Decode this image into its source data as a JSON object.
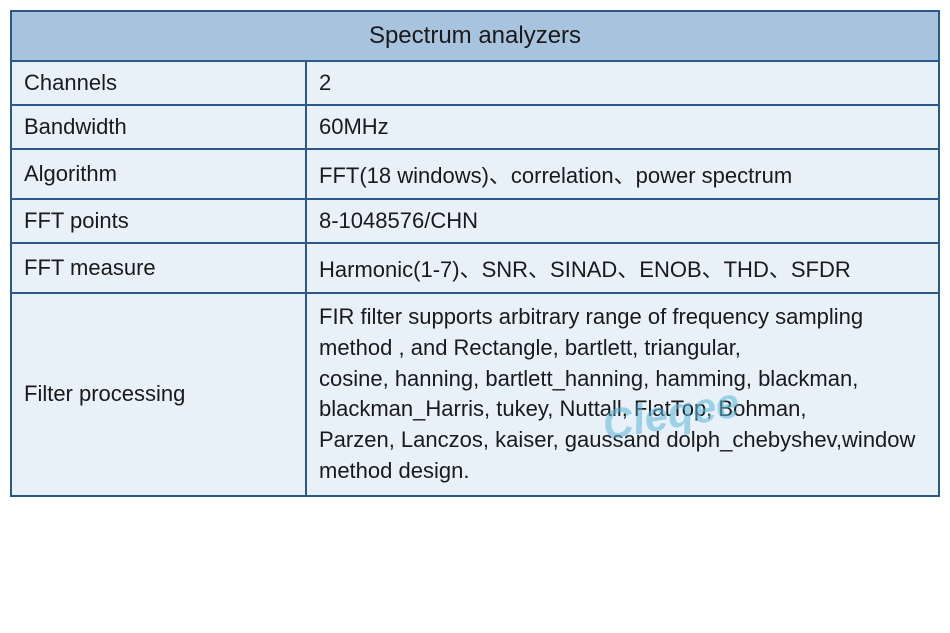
{
  "table": {
    "title": "Spectrum analyzers",
    "header_bg": "#a8c3de",
    "cell_bg": "#e8f0f8",
    "border_color": "#2b5a8a",
    "title_fontsize": 24,
    "cell_fontsize": 22,
    "text_color": "#1a1a1a",
    "label_col_width": 295,
    "rows": [
      {
        "label": "Channels",
        "value": "2"
      },
      {
        "label": "Bandwidth",
        "value": "60MHz"
      },
      {
        "label": "Algorithm",
        "value": "FFT(18 windows)、correlation、power spectrum"
      },
      {
        "label": "FFT points",
        "value": "8-1048576/CHN"
      },
      {
        "label": "FFT measure",
        "value": "Harmonic(1-7)、SNR、SINAD、ENOB、THD、SFDR"
      },
      {
        "label": "Filter processing",
        "value": "FIR filter supports arbitrary range of frequency sampling method , and Rectangle, bartlett, triangular,\ncosine, hanning, bartlett_hanning, hamming, blackman,\nblackman_Harris, tukey, Nuttall, FlatTop, Bohman,\nParzen, Lanczos, kaiser, gaussand dolph_chebyshev,window method design."
      }
    ]
  },
  "watermark": {
    "text": "Cleqee",
    "color": "#5bb8d8",
    "opacity": 0.55,
    "fontsize": 42,
    "rotation_deg": -10
  }
}
